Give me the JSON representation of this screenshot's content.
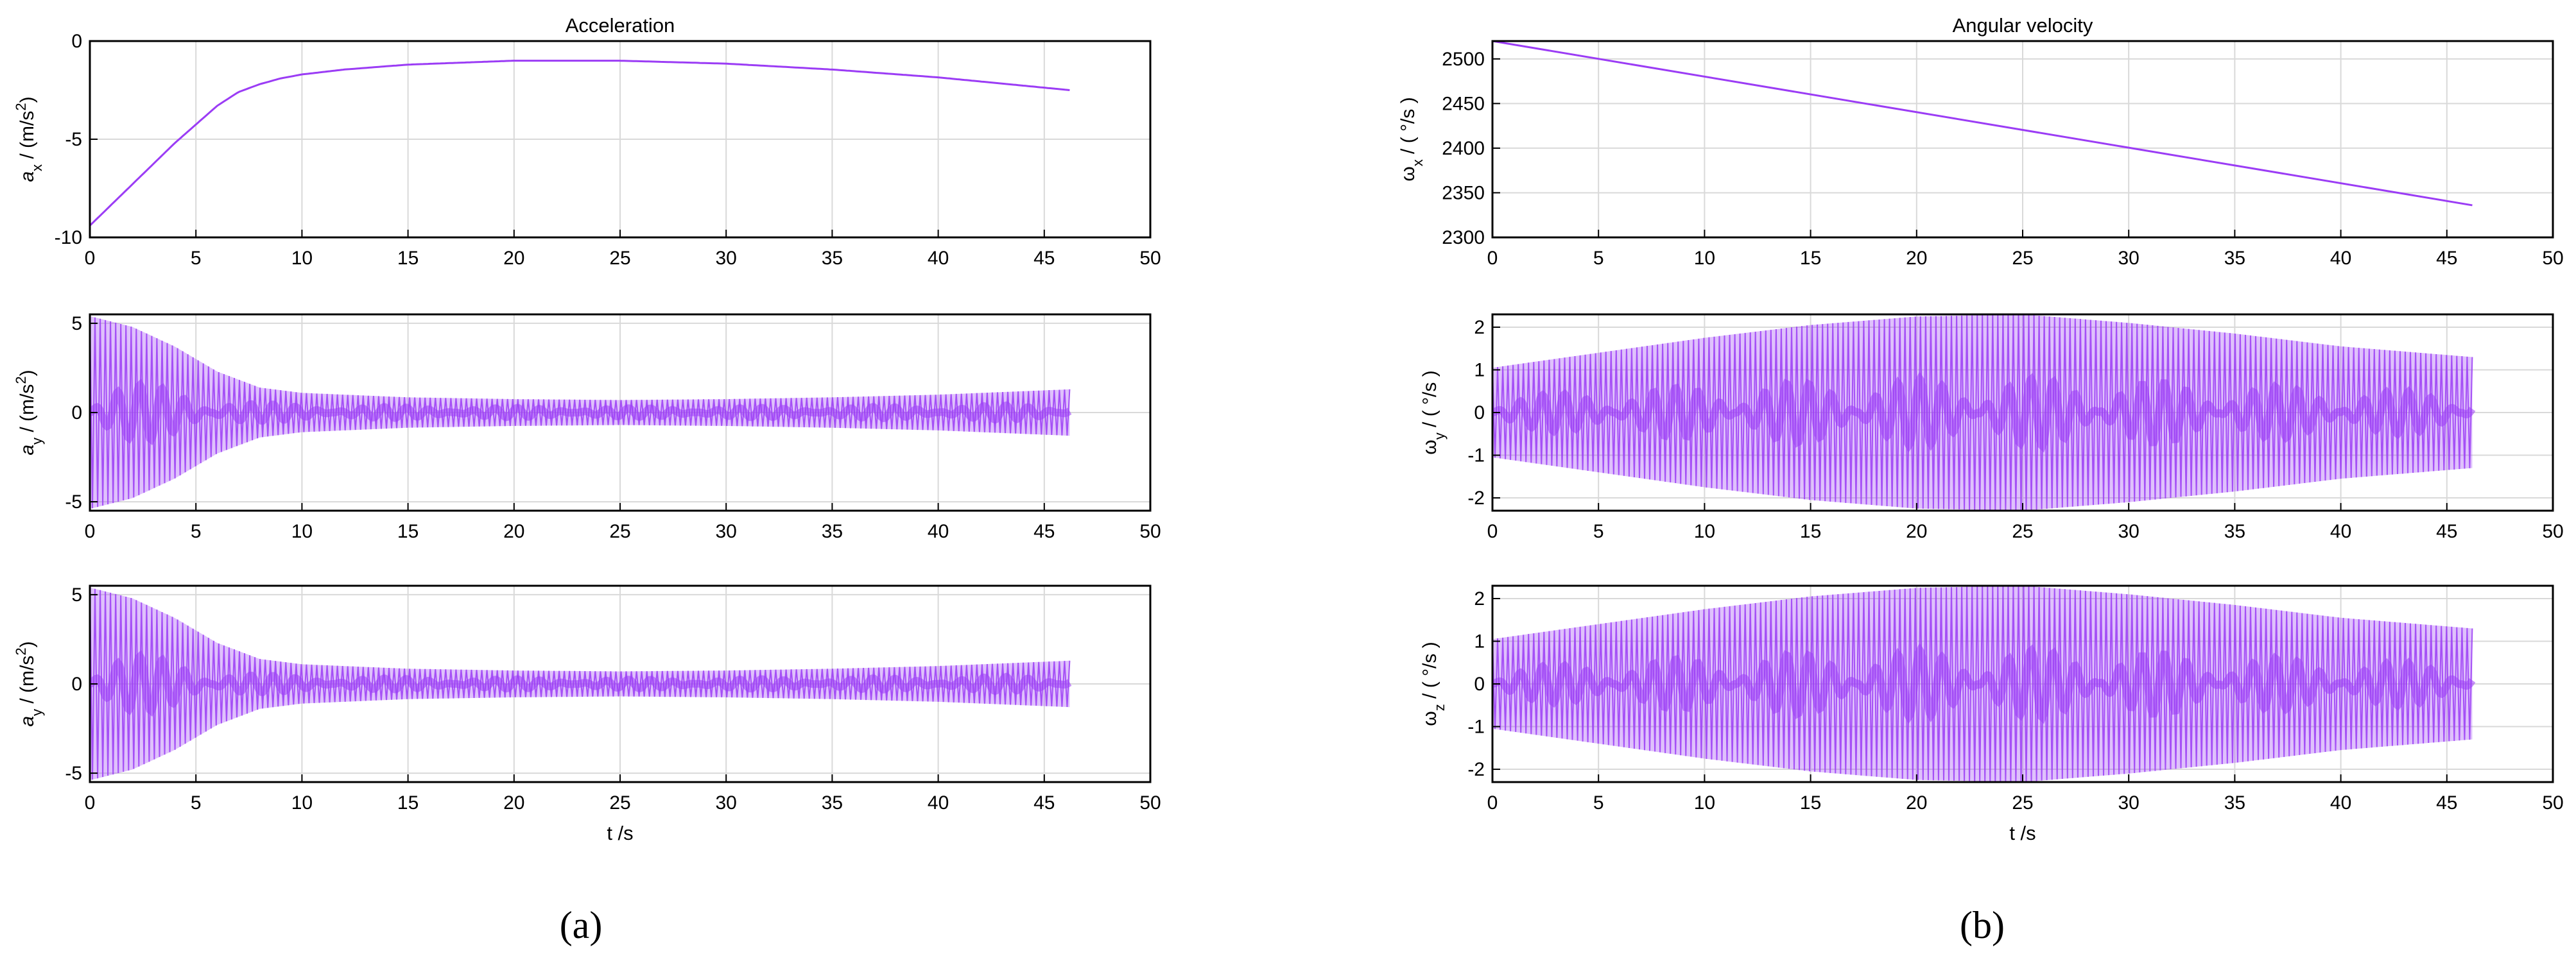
{
  "figure": {
    "panel_labels": [
      "(a)",
      "(b)"
    ],
    "panel_label_bold": [
      "a",
      "b"
    ]
  },
  "colors": {
    "trace": "#9b3cf5",
    "trace_fill": "#a44cf7",
    "axis": "#000000",
    "grid": "#d9d9d9"
  },
  "chart_data": [
    {
      "id": "ax",
      "type": "line",
      "title": "Acceleration",
      "xlabel": "",
      "ylabel": "a_x / (m/s^2)",
      "xlim": [
        0,
        50
      ],
      "ylim": [
        -10,
        0
      ],
      "xticks": [
        0,
        5,
        10,
        15,
        20,
        25,
        30,
        35,
        40,
        45,
        50
      ],
      "yticks": [
        -10,
        -5,
        0
      ],
      "grid": true,
      "x": [
        0,
        2,
        4,
        6,
        7,
        8,
        9,
        10,
        12,
        15,
        20,
        25,
        30,
        35,
        40,
        46.2
      ],
      "y": [
        -9.4,
        -7.3,
        -5.2,
        -3.3,
        -2.6,
        -2.2,
        -1.9,
        -1.7,
        -1.45,
        -1.2,
        -1.0,
        -1.0,
        -1.15,
        -1.45,
        -1.85,
        -2.5
      ]
    },
    {
      "id": "ay1",
      "type": "area",
      "title": "",
      "xlabel": "",
      "ylabel": "a_y / (m/s^2)",
      "xlim": [
        0,
        50
      ],
      "ylim": [
        -5.5,
        5.5
      ],
      "xticks": [
        0,
        5,
        10,
        15,
        20,
        25,
        30,
        35,
        40,
        45,
        50
      ],
      "yticks": [
        -5,
        0,
        5
      ],
      "grid": true,
      "x": [
        0,
        2,
        4,
        6,
        8,
        10,
        15,
        20,
        25,
        30,
        35,
        40,
        46.2
      ],
      "y_upper": [
        5.4,
        4.8,
        3.7,
        2.3,
        1.4,
        1.1,
        0.85,
        0.75,
        0.7,
        0.75,
        0.85,
        1.0,
        1.3
      ],
      "y_lower": [
        -5.4,
        -4.8,
        -3.7,
        -2.3,
        -1.4,
        -1.1,
        -0.85,
        -0.75,
        -0.7,
        -0.75,
        -0.85,
        -1.0,
        -1.3
      ]
    },
    {
      "id": "ay2",
      "type": "area",
      "title": "",
      "xlabel": "t /s",
      "ylabel": "a_y / (m/s^2)",
      "xlim": [
        0,
        50
      ],
      "ylim": [
        -5.5,
        5.5
      ],
      "xticks": [
        0,
        5,
        10,
        15,
        20,
        25,
        30,
        35,
        40,
        45,
        50
      ],
      "yticks": [
        -5,
        0,
        5
      ],
      "grid": true,
      "x": [
        0,
        2,
        4,
        6,
        8,
        10,
        15,
        20,
        25,
        30,
        35,
        40,
        46.2
      ],
      "y_upper": [
        5.4,
        4.8,
        3.7,
        2.3,
        1.4,
        1.1,
        0.85,
        0.75,
        0.7,
        0.75,
        0.85,
        1.0,
        1.3
      ],
      "y_lower": [
        -5.4,
        -4.8,
        -3.7,
        -2.3,
        -1.4,
        -1.1,
        -0.85,
        -0.75,
        -0.7,
        -0.75,
        -0.85,
        -1.0,
        -1.3
      ]
    },
    {
      "id": "wx",
      "type": "line",
      "title": "Angular velocity",
      "xlabel": "",
      "ylabel": "ω_x / ( °/s )",
      "xlim": [
        0,
        50
      ],
      "ylim": [
        2300,
        2520
      ],
      "xticks": [
        0,
        5,
        10,
        15,
        20,
        25,
        30,
        35,
        40,
        45,
        50
      ],
      "yticks": [
        2300,
        2350,
        2400,
        2450,
        2500
      ],
      "grid": true,
      "x": [
        0,
        46.2
      ],
      "y": [
        2520,
        2336
      ]
    },
    {
      "id": "wy",
      "type": "area",
      "title": "",
      "xlabel": "",
      "ylabel": "ω_y / ( °/s )",
      "xlim": [
        0,
        50
      ],
      "ylim": [
        -2.3,
        2.3
      ],
      "xticks": [
        0,
        5,
        10,
        15,
        20,
        25,
        30,
        35,
        40,
        45,
        50
      ],
      "yticks": [
        -2,
        -1,
        0,
        1,
        2
      ],
      "grid": true,
      "x": [
        0,
        5,
        10,
        15,
        20,
        25,
        30,
        35,
        40,
        46.2
      ],
      "y_upper": [
        1.05,
        1.4,
        1.75,
        2.05,
        2.25,
        2.3,
        2.1,
        1.85,
        1.55,
        1.3
      ],
      "y_lower": [
        -1.05,
        -1.4,
        -1.75,
        -2.05,
        -2.25,
        -2.3,
        -2.1,
        -1.85,
        -1.55,
        -1.3
      ]
    },
    {
      "id": "wz",
      "type": "area",
      "title": "",
      "xlabel": "t /s",
      "ylabel": "ω_z / ( °/s )",
      "xlim": [
        0,
        50
      ],
      "ylim": [
        -2.3,
        2.3
      ],
      "xticks": [
        0,
        5,
        10,
        15,
        20,
        25,
        30,
        35,
        40,
        45,
        50
      ],
      "yticks": [
        -2,
        -1,
        0,
        1,
        2
      ],
      "grid": true,
      "x": [
        0,
        5,
        10,
        15,
        20,
        25,
        30,
        35,
        40,
        46.2
      ],
      "y_upper": [
        1.05,
        1.4,
        1.75,
        2.05,
        2.25,
        2.3,
        2.1,
        1.85,
        1.55,
        1.3
      ],
      "y_lower": [
        -1.05,
        -1.4,
        -1.75,
        -2.05,
        -2.25,
        -2.3,
        -2.1,
        -1.85,
        -1.55,
        -1.3
      ]
    }
  ]
}
